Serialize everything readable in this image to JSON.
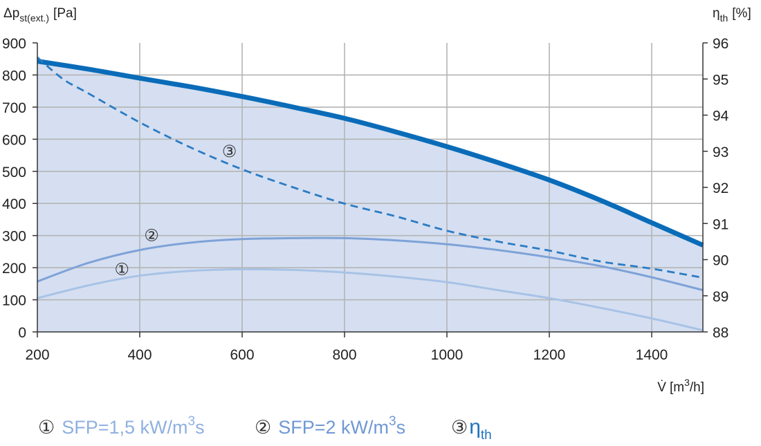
{
  "chart_data": {
    "type": "line",
    "y_title": {
      "symbol": "Δp",
      "subscript": "st(ext.)",
      "unit": "[Pa]"
    },
    "y2_title": {
      "symbol": "η",
      "subscript": "th",
      "unit": "[%]"
    },
    "x_title": {
      "symbol": "V̇",
      "unit_prefix": "[m",
      "unit_sup": "3",
      "unit_suffix": "/h]"
    },
    "xlim": [
      200,
      1500
    ],
    "ylim": [
      0,
      900
    ],
    "y2lim": [
      88,
      96
    ],
    "x_ticks": [
      200,
      400,
      600,
      800,
      1000,
      1200,
      1400
    ],
    "y_ticks": [
      0,
      100,
      200,
      300,
      400,
      500,
      600,
      700,
      800,
      900
    ],
    "y2_ticks": [
      88,
      89,
      90,
      91,
      92,
      93,
      94,
      95,
      96
    ],
    "grid": true,
    "legend_position": "bottom",
    "colors": {
      "fill": "#d5dff1",
      "max_curve": "#0a6cb8",
      "sfp1": "#a8c2e6",
      "sfp2": "#7ea2d8",
      "eta": "#2b7bc4",
      "grid": "#b4b4b4"
    },
    "series": [
      {
        "id": "max",
        "axis": "left",
        "x": [
          200,
          300,
          400,
          500,
          600,
          700,
          800,
          900,
          1000,
          1100,
          1200,
          1300,
          1400,
          1500
        ],
        "y": [
          843,
          818,
          790,
          763,
          733,
          700,
          665,
          623,
          577,
          527,
          473,
          410,
          340,
          270
        ]
      },
      {
        "id": "sfp1",
        "axis": "left",
        "marker": "①",
        "marker_at": [
          365,
          195
        ],
        "x": [
          200,
          300,
          400,
          500,
          600,
          700,
          800,
          900,
          1000,
          1100,
          1200,
          1300,
          1400,
          1500
        ],
        "y": [
          105,
          145,
          175,
          190,
          195,
          193,
          185,
          172,
          155,
          130,
          105,
          75,
          42,
          5
        ]
      },
      {
        "id": "sfp2",
        "axis": "left",
        "marker": "②",
        "marker_at": [
          423,
          300
        ],
        "x": [
          200,
          300,
          400,
          500,
          600,
          700,
          800,
          900,
          1000,
          1100,
          1200,
          1300,
          1400,
          1500
        ],
        "y": [
          157,
          215,
          255,
          278,
          289,
          292,
          292,
          285,
          273,
          255,
          232,
          205,
          170,
          130
        ]
      },
      {
        "id": "eta",
        "axis": "right",
        "dashed": true,
        "marker": "③",
        "marker_at": [
          575,
          93.0
        ],
        "x": [
          200,
          250,
          300,
          400,
          500,
          600,
          700,
          800,
          900,
          1000,
          1100,
          1200,
          1300,
          1400,
          1500
        ],
        "y": [
          95.6,
          95.0,
          94.6,
          93.8,
          93.1,
          92.5,
          92.0,
          91.55,
          91.2,
          90.8,
          90.5,
          90.25,
          89.95,
          89.75,
          89.5
        ]
      }
    ],
    "legend": [
      {
        "marker": "①",
        "text": "SFP=1,5 kW/m",
        "sup": "3",
        "suffix": "s",
        "color": "#8fb0e0"
      },
      {
        "marker": "②",
        "text": "SFP=2 kW/m",
        "sup": "3",
        "suffix": "s",
        "color": "#6f98d6"
      },
      {
        "marker": "③",
        "text": "η",
        "sub": "th",
        "color": "#1f73bd"
      }
    ]
  }
}
